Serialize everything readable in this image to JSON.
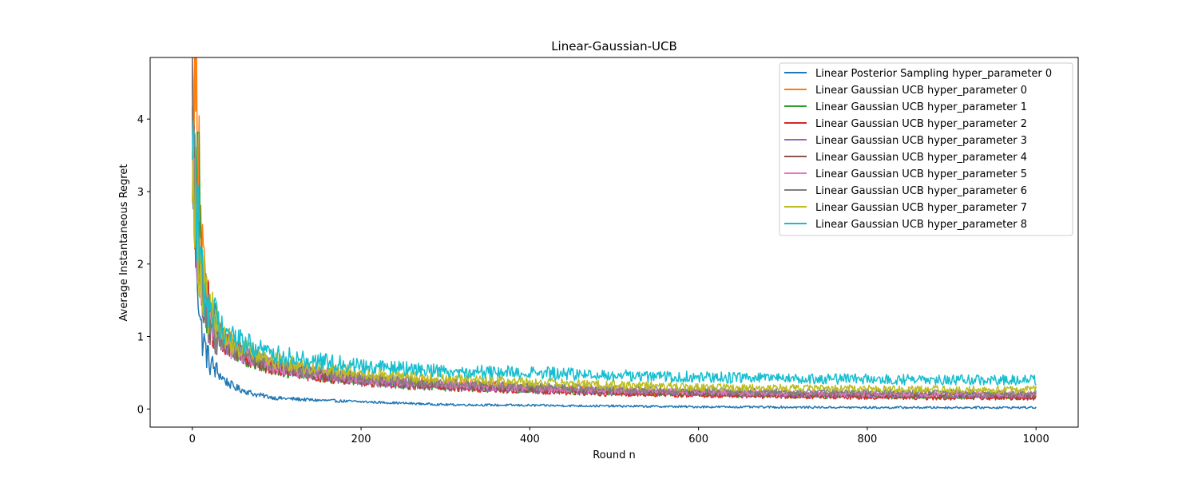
{
  "chart_data": {
    "type": "line",
    "title": "Linear-Gaussian-UCB",
    "xlabel": "Round n",
    "ylabel": "Average Instantaneous Regret",
    "xlim": [
      -50,
      1050
    ],
    "ylim": [
      -0.25,
      4.85
    ],
    "xticks": [
      0,
      200,
      400,
      600,
      800,
      1000
    ],
    "yticks": [
      0,
      1,
      2,
      3,
      4
    ],
    "grid": false,
    "legend_position": "top-right",
    "noise_note": "all series are noisy; values are approximate envelope midpoints",
    "x": [
      0,
      2,
      5,
      8,
      10,
      15,
      20,
      30,
      40,
      50,
      75,
      100,
      150,
      200,
      250,
      300,
      400,
      500,
      600,
      700,
      800,
      900,
      1000
    ],
    "series": [
      {
        "name": "Linear Posterior Sampling hyper_parameter 0",
        "color": "#1f77b4",
        "values": [
          3.7,
          3.0,
          2.2,
          1.5,
          1.1,
          0.85,
          0.65,
          0.5,
          0.38,
          0.3,
          0.2,
          0.15,
          0.12,
          0.1,
          0.08,
          0.06,
          0.05,
          0.04,
          0.03,
          0.025,
          0.02,
          0.02,
          0.02
        ]
      },
      {
        "name": "Linear Gaussian UCB hyper_parameter 0",
        "color": "#ff7f0e",
        "values": [
          4.0,
          4.3,
          4.2,
          3.8,
          2.5,
          1.6,
          1.35,
          1.1,
          0.95,
          0.85,
          0.7,
          0.6,
          0.5,
          0.42,
          0.38,
          0.35,
          0.3,
          0.25,
          0.22,
          0.2,
          0.19,
          0.18,
          0.17
        ]
      },
      {
        "name": "Linear Gaussian UCB hyper_parameter 1",
        "color": "#2ca02c",
        "values": [
          3.8,
          3.4,
          3.2,
          3.0,
          2.2,
          1.6,
          1.3,
          1.05,
          0.9,
          0.8,
          0.65,
          0.55,
          0.45,
          0.38,
          0.33,
          0.3,
          0.26,
          0.22,
          0.2,
          0.18,
          0.17,
          0.16,
          0.15
        ]
      },
      {
        "name": "Linear Gaussian UCB hyper_parameter 2",
        "color": "#d62728",
        "values": [
          3.9,
          3.0,
          2.6,
          2.2,
          2.0,
          1.6,
          1.3,
          1.05,
          0.9,
          0.8,
          0.65,
          0.55,
          0.45,
          0.38,
          0.33,
          0.3,
          0.25,
          0.21,
          0.19,
          0.17,
          0.16,
          0.15,
          0.15
        ]
      },
      {
        "name": "Linear Gaussian UCB hyper_parameter 3",
        "color": "#9467bd",
        "values": [
          3.9,
          3.0,
          2.4,
          2.0,
          1.8,
          1.5,
          1.25,
          1.0,
          0.9,
          0.8,
          0.67,
          0.57,
          0.47,
          0.4,
          0.35,
          0.32,
          0.27,
          0.24,
          0.22,
          0.2,
          0.19,
          0.18,
          0.18
        ]
      },
      {
        "name": "Linear Gaussian UCB hyper_parameter 4",
        "color": "#8c564b",
        "values": [
          3.9,
          3.1,
          2.5,
          2.0,
          1.8,
          1.5,
          1.25,
          1.0,
          0.9,
          0.8,
          0.67,
          0.57,
          0.47,
          0.4,
          0.36,
          0.33,
          0.28,
          0.25,
          0.23,
          0.21,
          0.2,
          0.2,
          0.19
        ]
      },
      {
        "name": "Linear Gaussian UCB hyper_parameter 5",
        "color": "#e377c2",
        "values": [
          3.9,
          3.0,
          2.4,
          2.0,
          1.8,
          1.5,
          1.25,
          1.0,
          0.9,
          0.8,
          0.68,
          0.58,
          0.48,
          0.41,
          0.37,
          0.34,
          0.29,
          0.26,
          0.24,
          0.22,
          0.21,
          0.21,
          0.2
        ]
      },
      {
        "name": "Linear Gaussian UCB hyper_parameter 6",
        "color": "#7f7f7f",
        "values": [
          3.9,
          3.0,
          2.4,
          2.0,
          1.8,
          1.5,
          1.25,
          1.0,
          0.9,
          0.82,
          0.7,
          0.6,
          0.5,
          0.43,
          0.39,
          0.36,
          0.31,
          0.28,
          0.26,
          0.24,
          0.23,
          0.23,
          0.22
        ]
      },
      {
        "name": "Linear Gaussian UCB hyper_parameter 7",
        "color": "#bcbd22",
        "values": [
          4.0,
          3.2,
          2.6,
          2.2,
          2.0,
          1.6,
          1.35,
          1.1,
          0.98,
          0.9,
          0.76,
          0.66,
          0.56,
          0.5,
          0.45,
          0.42,
          0.37,
          0.33,
          0.3,
          0.29,
          0.28,
          0.27,
          0.27
        ]
      },
      {
        "name": "Linear Gaussian UCB hyper_parameter 8",
        "color": "#17becf",
        "values": [
          4.7,
          3.8,
          2.8,
          2.2,
          1.9,
          1.65,
          1.45,
          1.2,
          1.07,
          0.98,
          0.84,
          0.75,
          0.66,
          0.6,
          0.56,
          0.53,
          0.5,
          0.46,
          0.44,
          0.42,
          0.41,
          0.4,
          0.4
        ]
      }
    ]
  }
}
